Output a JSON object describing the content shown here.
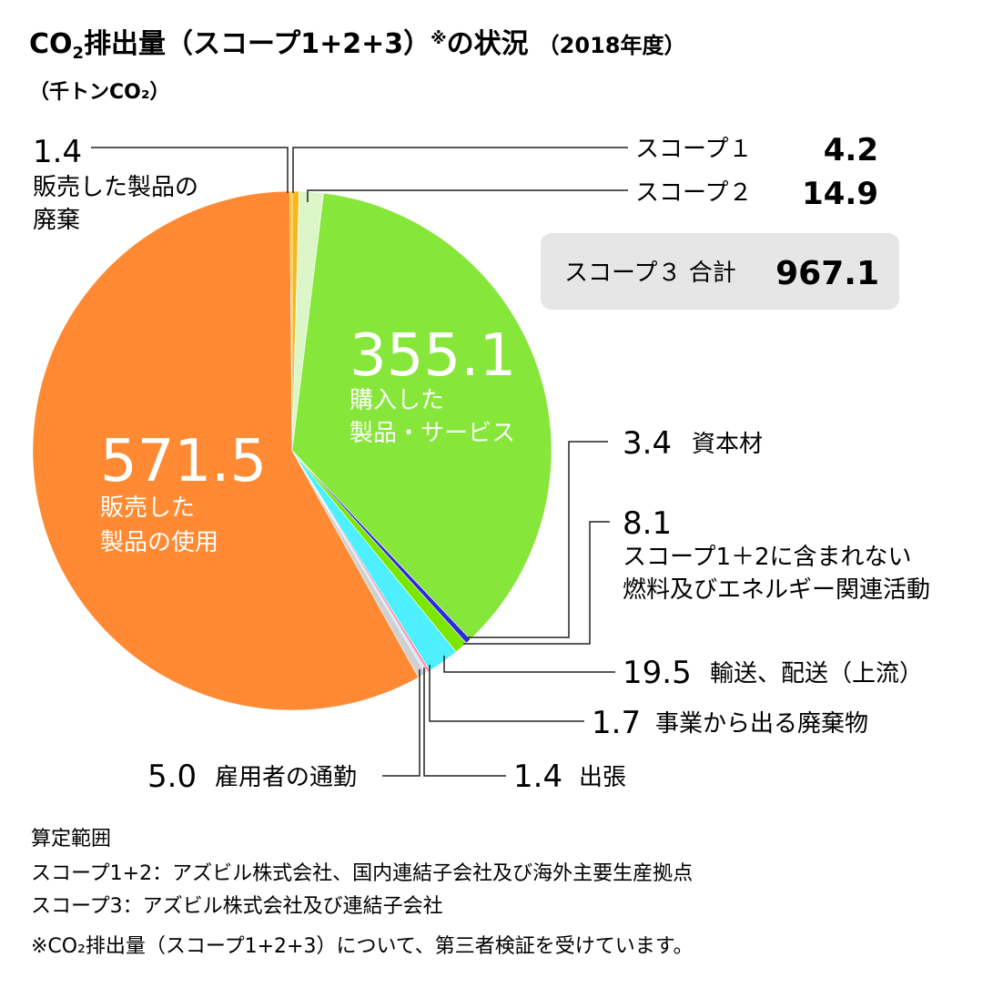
{
  "chart_data": {
    "type": "pie",
    "title_main": "CO",
    "title_sub2": "2",
    "title_rest": "排出量（スコープ1+2+3）",
    "title_note": "※",
    "title_tail": "の状況",
    "title_year": "（2018年度）",
    "unit_label": "（千トンCO₂）",
    "slices": [
      {
        "id": "scope1",
        "label": "スコープ１",
        "value": 4.2,
        "color": "#f6b81c"
      },
      {
        "id": "scope2",
        "label": "スコープ２",
        "value": 14.9,
        "color": "#dcf6c8"
      },
      {
        "id": "purchased",
        "label": "購入した製品・サービス",
        "label_line1": "購入した",
        "label_line2": "製品・サービス",
        "value": 355.1,
        "value_text": "355.1",
        "color": "#86e63a"
      },
      {
        "id": "capital",
        "label": "資本材",
        "value": 3.4,
        "value_text": "3.4",
        "color": "#2b2bd8"
      },
      {
        "id": "fuel",
        "label_line1": "スコープ1＋2に含まれない",
        "label_line2": "燃料及びエネルギー関連活動",
        "value": 8.1,
        "value_text": "8.1",
        "color": "#7be600"
      },
      {
        "id": "transport",
        "label": "輸送、配送（上流）",
        "value": 19.5,
        "value_text": "19.5",
        "color": "#4ef0ff"
      },
      {
        "id": "waste",
        "label": "事業から出る廃棄物",
        "value": 1.7,
        "value_text": "1.7",
        "color": "#ff8aa0"
      },
      {
        "id": "travel",
        "label": "出張",
        "value": 1.4,
        "value_text": "1.4",
        "color": "#c8e4ff"
      },
      {
        "id": "commute",
        "label": "雇用者の通勤",
        "value": 5.0,
        "value_text": "5.0",
        "color": "#d0d0d0"
      },
      {
        "id": "use",
        "label_line1": "販売した",
        "label_line2": "製品の使用",
        "value": 571.5,
        "value_text": "571.5",
        "color": "#ff8a33"
      },
      {
        "id": "eol",
        "label_line1": "販売した製品の",
        "label_line2": "廃棄",
        "value": 1.4,
        "value_text": "1.4",
        "color": "#ffc000"
      }
    ],
    "scope1_value_text": "4.2",
    "scope2_value_text": "14.9",
    "scope3_total_label": "スコープ３ 合計",
    "scope3_total_value": "967.1"
  },
  "footnotes": {
    "heading": "算定範囲",
    "line1": "スコープ1+2：アズビル株式会社、国内連結子会社及び海外主要生産拠点",
    "line2": "スコープ3：アズビル株式会社及び連結子会社",
    "line3": "※CO₂排出量（スコープ1+2+3）について、第三者検証を受けています。"
  }
}
